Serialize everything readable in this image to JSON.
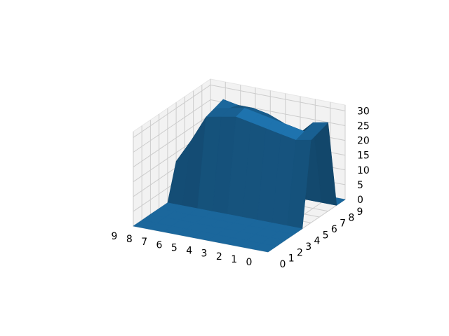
{
  "chart_data": {
    "type": "surface3d",
    "x": [
      0,
      1,
      2,
      3,
      4,
      5,
      6,
      7,
      8,
      9
    ],
    "y": [
      0,
      1,
      2,
      3,
      4,
      5,
      6,
      7,
      8,
      9
    ],
    "z": [
      [
        0,
        0,
        0,
        0,
        0,
        0,
        0,
        0,
        0,
        0
      ],
      [
        0,
        0,
        0,
        0,
        0,
        0,
        0,
        0,
        0,
        0
      ],
      [
        0,
        0,
        0,
        0,
        0,
        0,
        0,
        0,
        0,
        0
      ],
      [
        0,
        0,
        0,
        0,
        0,
        0,
        0,
        0,
        0,
        0
      ],
      [
        0,
        0,
        0,
        0,
        0,
        0,
        0,
        0,
        0,
        0
      ],
      [
        28,
        27,
        28,
        29,
        30,
        31,
        30,
        29,
        20,
        12
      ],
      [
        29,
        28,
        29,
        30,
        31,
        32,
        31,
        30,
        22,
        13
      ],
      [
        30,
        29,
        24,
        27,
        29,
        30,
        30,
        31,
        24,
        12
      ],
      [
        0,
        0,
        0,
        0,
        0,
        0,
        0,
        0,
        0,
        0
      ],
      [
        0,
        0,
        0,
        0,
        0,
        0,
        0,
        0,
        0,
        0
      ]
    ],
    "x_ticks": [
      "0",
      "1",
      "2",
      "3",
      "4",
      "5",
      "6",
      "7",
      "8",
      "9"
    ],
    "y_ticks": [
      "0",
      "1",
      "2",
      "3",
      "4",
      "5",
      "6",
      "7",
      "8",
      "9"
    ],
    "z_ticks": [
      "0",
      "5",
      "10",
      "15",
      "20",
      "25",
      "30"
    ],
    "xlim": [
      0,
      9
    ],
    "ylim": [
      0,
      9
    ],
    "zlim": [
      0,
      32
    ],
    "grid": true,
    "colors": {
      "surface": "#1f77b4",
      "pane": "#f2f2f2",
      "grid": "#cccccc"
    }
  }
}
